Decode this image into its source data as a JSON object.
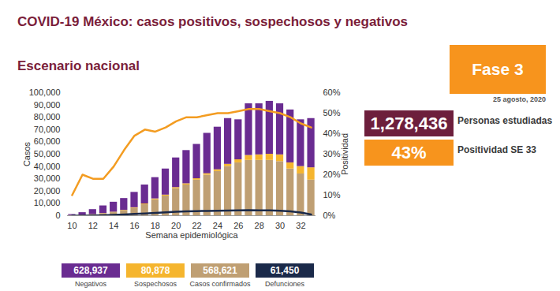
{
  "chart_data": {
    "type": "bar",
    "title": "COVID-19 México: casos positivos, sospechosos y negativos",
    "subtitle": "Escenario nacional",
    "xlabel": "Semana epidemiológica",
    "ylabel": "Casos",
    "y2label": "Positividad",
    "categories": [
      10,
      null,
      12,
      null,
      14,
      null,
      16,
      null,
      18,
      null,
      20,
      null,
      22,
      null,
      24,
      null,
      26,
      null,
      28,
      null,
      30,
      null,
      32,
      null
    ],
    "stacked": true,
    "grid": false,
    "legend": "bottom",
    "data_labels": false,
    "ylim": [
      0,
      100000
    ],
    "yticks": [
      0,
      {
        "value": 10000,
        "label": "10,000"
      },
      {
        "value": 20000,
        "label": "20,000"
      },
      {
        "value": 30000,
        "label": "30,000"
      },
      {
        "value": 40000,
        "label": "40,000"
      },
      {
        "value": 50000,
        "label": "50,000"
      },
      {
        "value": 60000,
        "label": "60,000"
      },
      {
        "value": 70000,
        "label": "70,000"
      },
      {
        "value": 80000,
        "label": "80,000"
      },
      {
        "value": 90000,
        "label": "90,000"
      },
      {
        "value": 100000,
        "label": "100,000"
      }
    ],
    "y2lim": [
      0,
      60
    ],
    "y2ticks": [
      {
        "value": 0,
        "label": "0%"
      },
      {
        "value": 10,
        "label": "10%"
      },
      {
        "value": 20,
        "label": "20%"
      },
      {
        "value": 30,
        "label": "30%"
      },
      {
        "value": 40,
        "label": "40%"
      },
      {
        "value": 50,
        "label": "50%"
      },
      {
        "value": 60,
        "label": "60%"
      }
    ],
    "series": [
      {
        "name": "Negativos",
        "type": "bar",
        "color": "#6a2c91",
        "total": 628937,
        "total_label": "628,937",
        "values": [
          800,
          2000,
          4000,
          6200,
          8100,
          9600,
          12500,
          15400,
          17300,
          21200,
          24100,
          27000,
          27900,
          32800,
          34600,
          37200,
          32500,
          42000,
          41500,
          43000,
          41500,
          43000,
          38000,
          40000
        ]
      },
      {
        "name": "Sospechosos",
        "type": "bar",
        "color": "#f5b52e",
        "total": 80878,
        "total_label": "80,878",
        "values": [
          100,
          200,
          300,
          300,
          400,
          400,
          500,
          600,
          700,
          800,
          900,
          1000,
          1100,
          1200,
          1400,
          1800,
          2500,
          4000,
          4500,
          5000,
          5500,
          5000,
          6000,
          10000
        ]
      },
      {
        "name": "Casos confirmados",
        "type": "bar",
        "color": "#bf9f73",
        "total": 568621,
        "total_label": "568,621",
        "values": [
          100,
          300,
          700,
          1500,
          2500,
          4000,
          6000,
          9000,
          13000,
          16000,
          22000,
          25000,
          29000,
          33000,
          36000,
          40000,
          43000,
          45000,
          45000,
          45000,
          44000,
          38000,
          34000,
          29000
        ]
      },
      {
        "name": "Defunciones",
        "type": "line",
        "color": "#1b2a4a",
        "total": 61450,
        "total_label": "61,450",
        "values": [
          5,
          30,
          150,
          400,
          700,
          1000,
          1400,
          1800,
          2300,
          2700,
          3200,
          3500,
          3700,
          3900,
          4000,
          4100,
          4300,
          4500,
          4400,
          4300,
          4000,
          3500,
          2600,
          900
        ]
      },
      {
        "name": "Positividad",
        "type": "line",
        "axis": "y2",
        "color": "#f39c21",
        "values": [
          10,
          20,
          18,
          18,
          24,
          32,
          39,
          42,
          41,
          43,
          46,
          48,
          48,
          49,
          50,
          50,
          51,
          52,
          52,
          51,
          50,
          48,
          45,
          43
        ]
      }
    ],
    "panels": {
      "phase": "Fase 3",
      "date": "25 agosto, 2020",
      "studied": {
        "value": 1278436,
        "label": "1,278,436",
        "text": "Personas estudiadas"
      },
      "positivity": {
        "value": 43,
        "label": "43%",
        "text": "Positividad SE 33"
      }
    }
  }
}
